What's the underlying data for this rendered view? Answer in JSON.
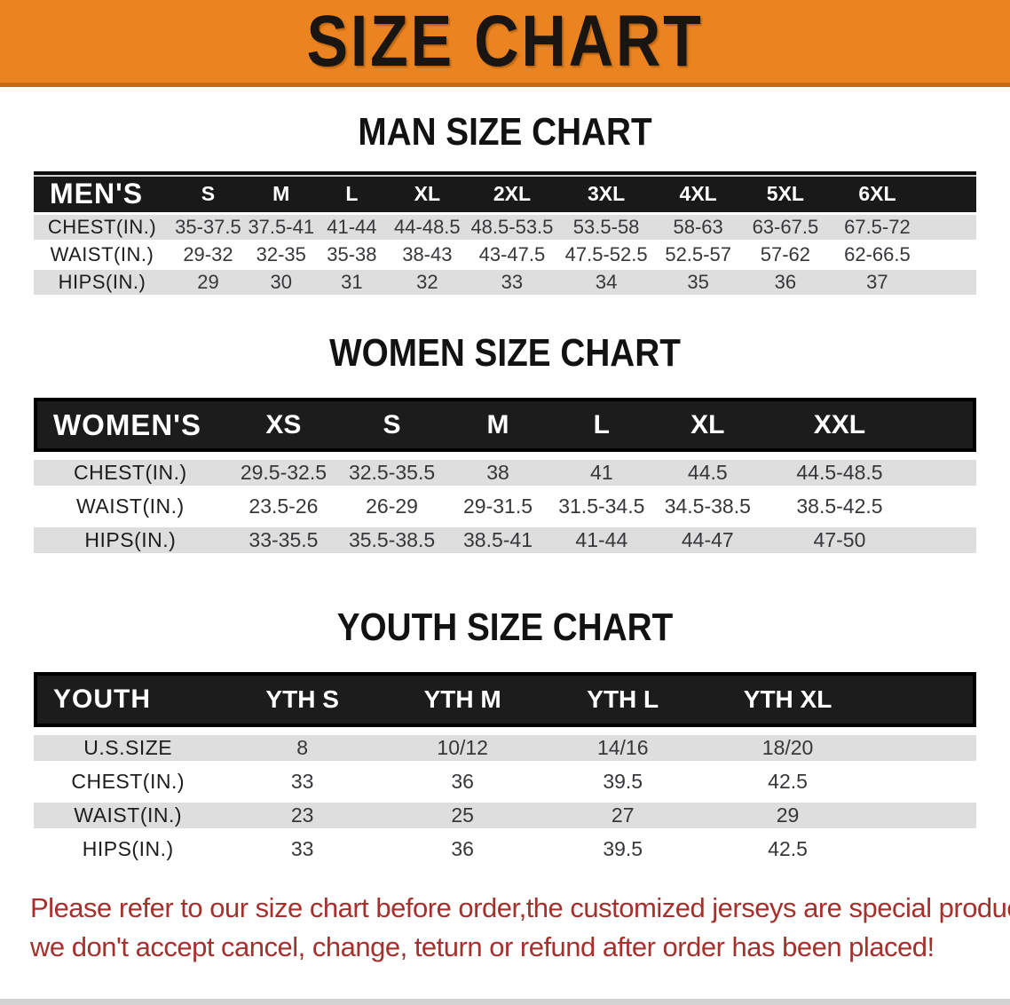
{
  "banner": {
    "title": "SIZE CHART",
    "bg_color": "#EB8420",
    "text_color": "#181512"
  },
  "sections": {
    "men": {
      "heading": "MAN SIZE CHART",
      "table": {
        "label": "MEN'S",
        "columns": [
          "S",
          "M",
          "L",
          "XL",
          "2XL",
          "3XL",
          "4XL",
          "5XL",
          "6XL"
        ],
        "rows": [
          {
            "label": "CHEST(IN.)",
            "values": [
              "35-37.5",
              "37.5-41",
              "41-44",
              "44-48.5",
              "48.5-53.5",
              "53.5-58",
              "58-63",
              "63-67.5",
              "67.5-72"
            ]
          },
          {
            "label": "WAIST(IN.)",
            "values": [
              "29-32",
              "32-35",
              "35-38",
              "38-43",
              "43-47.5",
              "47.5-52.5",
              "52.5-57",
              "57-62",
              "62-66.5"
            ]
          },
          {
            "label": "HIPS(IN.)",
            "values": [
              "29",
              "30",
              "31",
              "32",
              "33",
              "34",
              "35",
              "36",
              "37"
            ]
          }
        ]
      }
    },
    "women": {
      "heading": "WOMEN SIZE CHART",
      "table": {
        "label": "WOMEN'S",
        "columns": [
          "XS",
          "S",
          "M",
          "L",
          "XL",
          "XXL"
        ],
        "rows": [
          {
            "label": "CHEST(IN.)",
            "values": [
              "29.5-32.5",
              "32.5-35.5",
              "38",
              "41",
              "44.5",
              "44.5-48.5"
            ]
          },
          {
            "label": "WAIST(IN.)",
            "values": [
              "23.5-26",
              "26-29",
              "29-31.5",
              "31.5-34.5",
              "34.5-38.5",
              "38.5-42.5"
            ]
          },
          {
            "label": "HIPS(IN.)",
            "values": [
              "33-35.5",
              "35.5-38.5",
              "38.5-41",
              "41-44",
              "44-47",
              "47-50"
            ]
          }
        ]
      }
    },
    "youth": {
      "heading": "YOUTH SIZE CHART",
      "table": {
        "label": "YOUTH",
        "columns": [
          "YTH S",
          "YTH M",
          "YTH L",
          "YTH XL"
        ],
        "rows": [
          {
            "label": "U.S.SIZE",
            "values": [
              "8",
              "10/12",
              "14/16",
              "18/20"
            ]
          },
          {
            "label": "CHEST(IN.)",
            "values": [
              "33",
              "36",
              "39.5",
              "42.5"
            ]
          },
          {
            "label": "WAIST(IN.)",
            "values": [
              "23",
              "25",
              "27",
              "29"
            ]
          },
          {
            "label": "HIPS(IN.)",
            "values": [
              "33",
              "36",
              "39.5",
              "42.5"
            ]
          }
        ]
      }
    }
  },
  "footer": {
    "lines": [
      "Please refer to our size chart before order,the customized jerseys are special products,",
      "we don't accept cancel, change, teturn or refund after order has been placed!"
    ],
    "text_color": "#A5302C"
  }
}
